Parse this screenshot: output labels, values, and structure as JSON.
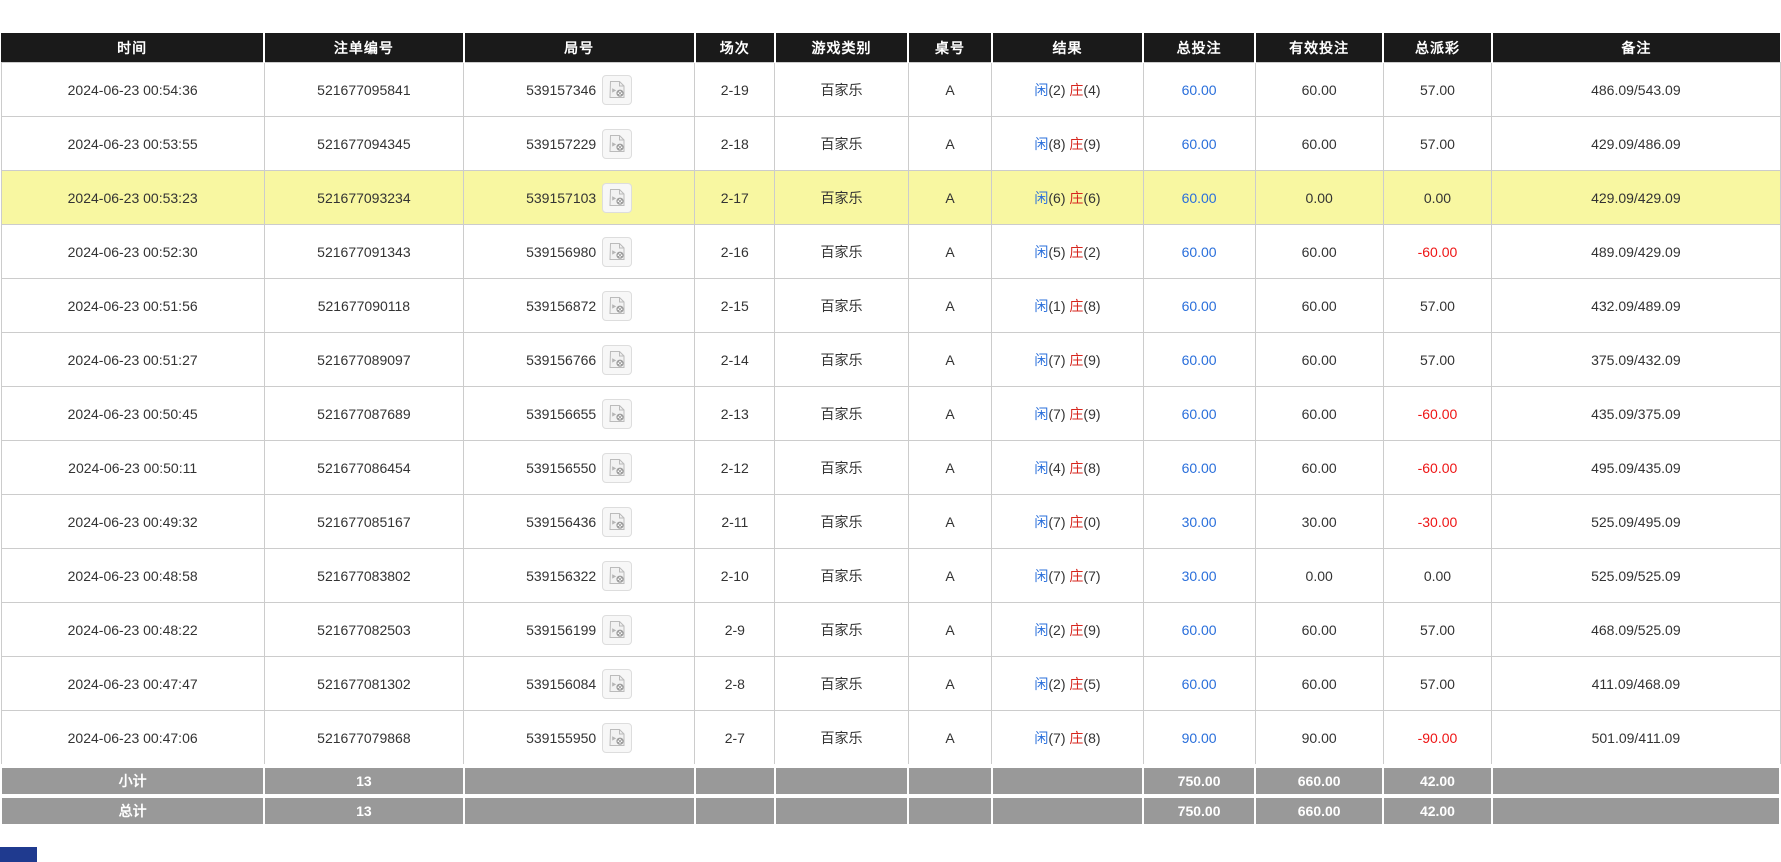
{
  "columns": [
    {
      "key": "time",
      "label": "时间"
    },
    {
      "key": "order_no",
      "label": "注单编号"
    },
    {
      "key": "round_no",
      "label": "局号"
    },
    {
      "key": "session",
      "label": "场次"
    },
    {
      "key": "game_type",
      "label": "游戏类别"
    },
    {
      "key": "table_no",
      "label": "桌号"
    },
    {
      "key": "result",
      "label": "结果"
    },
    {
      "key": "total_bet",
      "label": "总投注"
    },
    {
      "key": "valid_bet",
      "label": "有效投注"
    },
    {
      "key": "payout",
      "label": "总派彩"
    },
    {
      "key": "remark",
      "label": "备注"
    }
  ],
  "rows": [
    {
      "time": "2024-06-23 00:54:36",
      "order_no": "521677095841",
      "round_no": "539157346",
      "session": "2-19",
      "game_type": "百家乐",
      "table_no": "A",
      "result": {
        "player_label": "闲",
        "player_score": "(2)",
        "banker_label": "庄",
        "banker_score": "(4)"
      },
      "total_bet": "60.00",
      "valid_bet": "60.00",
      "payout": "57.00",
      "remark": "486.09/543.09",
      "highlighted": false
    },
    {
      "time": "2024-06-23 00:53:55",
      "order_no": "521677094345",
      "round_no": "539157229",
      "session": "2-18",
      "game_type": "百家乐",
      "table_no": "A",
      "result": {
        "player_label": "闲",
        "player_score": "(8)",
        "banker_label": "庄",
        "banker_score": "(9)"
      },
      "total_bet": "60.00",
      "valid_bet": "60.00",
      "payout": "57.00",
      "remark": "429.09/486.09",
      "highlighted": false
    },
    {
      "time": "2024-06-23 00:53:23",
      "order_no": "521677093234",
      "round_no": "539157103",
      "session": "2-17",
      "game_type": "百家乐",
      "table_no": "A",
      "result": {
        "player_label": "闲",
        "player_score": "(6)",
        "banker_label": "庄",
        "banker_score": "(6)"
      },
      "total_bet": "60.00",
      "valid_bet": "0.00",
      "payout": "0.00",
      "remark": "429.09/429.09",
      "highlighted": true
    },
    {
      "time": "2024-06-23 00:52:30",
      "order_no": "521677091343",
      "round_no": "539156980",
      "session": "2-16",
      "game_type": "百家乐",
      "table_no": "A",
      "result": {
        "player_label": "闲",
        "player_score": "(5)",
        "banker_label": "庄",
        "banker_score": "(2)"
      },
      "total_bet": "60.00",
      "valid_bet": "60.00",
      "payout": "-60.00",
      "remark": "489.09/429.09",
      "highlighted": false
    },
    {
      "time": "2024-06-23 00:51:56",
      "order_no": "521677090118",
      "round_no": "539156872",
      "session": "2-15",
      "game_type": "百家乐",
      "table_no": "A",
      "result": {
        "player_label": "闲",
        "player_score": "(1)",
        "banker_label": "庄",
        "banker_score": "(8)"
      },
      "total_bet": "60.00",
      "valid_bet": "60.00",
      "payout": "57.00",
      "remark": "432.09/489.09",
      "highlighted": false
    },
    {
      "time": "2024-06-23 00:51:27",
      "order_no": "521677089097",
      "round_no": "539156766",
      "session": "2-14",
      "game_type": "百家乐",
      "table_no": "A",
      "result": {
        "player_label": "闲",
        "player_score": "(7)",
        "banker_label": "庄",
        "banker_score": "(9)"
      },
      "total_bet": "60.00",
      "valid_bet": "60.00",
      "payout": "57.00",
      "remark": "375.09/432.09",
      "highlighted": false
    },
    {
      "time": "2024-06-23 00:50:45",
      "order_no": "521677087689",
      "round_no": "539156655",
      "session": "2-13",
      "game_type": "百家乐",
      "table_no": "A",
      "result": {
        "player_label": "闲",
        "player_score": "(7)",
        "banker_label": "庄",
        "banker_score": "(9)"
      },
      "total_bet": "60.00",
      "valid_bet": "60.00",
      "payout": "-60.00",
      "remark": "435.09/375.09",
      "highlighted": false
    },
    {
      "time": "2024-06-23 00:50:11",
      "order_no": "521677086454",
      "round_no": "539156550",
      "session": "2-12",
      "game_type": "百家乐",
      "table_no": "A",
      "result": {
        "player_label": "闲",
        "player_score": "(4)",
        "banker_label": "庄",
        "banker_score": "(8)"
      },
      "total_bet": "60.00",
      "valid_bet": "60.00",
      "payout": "-60.00",
      "remark": "495.09/435.09",
      "highlighted": false
    },
    {
      "time": "2024-06-23 00:49:32",
      "order_no": "521677085167",
      "round_no": "539156436",
      "session": "2-11",
      "game_type": "百家乐",
      "table_no": "A",
      "result": {
        "player_label": "闲",
        "player_score": "(7)",
        "banker_label": "庄",
        "banker_score": "(0)"
      },
      "total_bet": "30.00",
      "valid_bet": "30.00",
      "payout": "-30.00",
      "remark": "525.09/495.09",
      "highlighted": false
    },
    {
      "time": "2024-06-23 00:48:58",
      "order_no": "521677083802",
      "round_no": "539156322",
      "session": "2-10",
      "game_type": "百家乐",
      "table_no": "A",
      "result": {
        "player_label": "闲",
        "player_score": "(7)",
        "banker_label": "庄",
        "banker_score": "(7)"
      },
      "total_bet": "30.00",
      "valid_bet": "0.00",
      "payout": "0.00",
      "remark": "525.09/525.09",
      "highlighted": false
    },
    {
      "time": "2024-06-23 00:48:22",
      "order_no": "521677082503",
      "round_no": "539156199",
      "session": "2-9",
      "game_type": "百家乐",
      "table_no": "A",
      "result": {
        "player_label": "闲",
        "player_score": "(2)",
        "banker_label": "庄",
        "banker_score": "(9)"
      },
      "total_bet": "60.00",
      "valid_bet": "60.00",
      "payout": "57.00",
      "remark": "468.09/525.09",
      "highlighted": false
    },
    {
      "time": "2024-06-23 00:47:47",
      "order_no": "521677081302",
      "round_no": "539156084",
      "session": "2-8",
      "game_type": "百家乐",
      "table_no": "A",
      "result": {
        "player_label": "闲",
        "player_score": "(2)",
        "banker_label": "庄",
        "banker_score": "(5)"
      },
      "total_bet": "60.00",
      "valid_bet": "60.00",
      "payout": "57.00",
      "remark": "411.09/468.09",
      "highlighted": false
    },
    {
      "time": "2024-06-23 00:47:06",
      "order_no": "521677079868",
      "round_no": "539155950",
      "session": "2-7",
      "game_type": "百家乐",
      "table_no": "A",
      "result": {
        "player_label": "闲",
        "player_score": "(7)",
        "banker_label": "庄",
        "banker_score": "(8)"
      },
      "total_bet": "90.00",
      "valid_bet": "90.00",
      "payout": "-90.00",
      "remark": "501.09/411.09",
      "highlighted": false
    }
  ],
  "summary": {
    "subtotal": {
      "label": "小计",
      "count": "13",
      "total_bet": "750.00",
      "valid_bet": "660.00",
      "payout": "42.00"
    },
    "total": {
      "label": "总计",
      "count": "13",
      "total_bet": "750.00",
      "valid_bet": "660.00",
      "payout": "42.00"
    }
  },
  "icons": {
    "replay": "video-replay-icon"
  },
  "colors": {
    "header_bg": "#1a1a1a",
    "header_text": "#ffffff",
    "row_highlight": "#f8f7a1",
    "player_blue": "#2a6fdb",
    "banker_red": "#d6261e",
    "negative_red": "#ee1515",
    "summary_bg": "#999999",
    "grid_line": "#cccccc",
    "footer_fragment": "#1f3a8f"
  }
}
